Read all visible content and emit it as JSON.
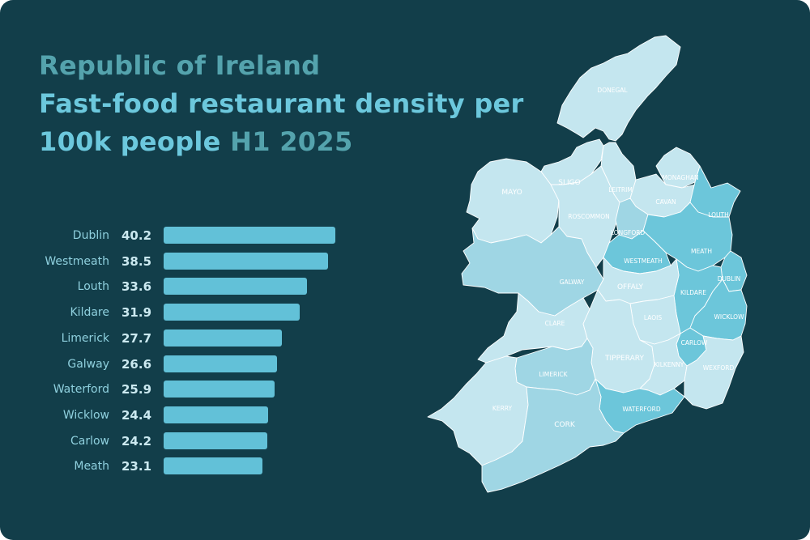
{
  "title": {
    "line1": "Republic of Ireland",
    "line2": "Fast-food restaurant density per",
    "line3_a": "100k people",
    "line3_b": "H1 2025"
  },
  "chart_data": {
    "type": "bar",
    "orientation": "horizontal",
    "categories": [
      "Dublin",
      "Westmeath",
      "Louth",
      "Kildare",
      "Limerick",
      "Galway",
      "Waterford",
      "Wicklow",
      "Carlow",
      "Meath"
    ],
    "values": [
      40.2,
      38.5,
      33.6,
      31.9,
      27.7,
      26.6,
      25.9,
      24.4,
      24.2,
      23.1
    ],
    "value_labels": [
      "40.2",
      "38.5",
      "33.6",
      "31.9",
      "27.7",
      "26.6",
      "25.9",
      "24.4",
      "24.2",
      "23.1"
    ],
    "title": "Republic of Ireland Fast-food restaurant density per 100k people H1 2025",
    "xlim": [
      0,
      40.2
    ]
  },
  "map": {
    "counties": [
      {
        "name": "DONEGAL"
      },
      {
        "name": "SLIGO"
      },
      {
        "name": "LEITRIM"
      },
      {
        "name": "MONAGHAN"
      },
      {
        "name": "MAYO"
      },
      {
        "name": "CAVAN"
      },
      {
        "name": "ROSCOMMON"
      },
      {
        "name": "LOUTH"
      },
      {
        "name": "LONGFORD"
      },
      {
        "name": "MEATH"
      },
      {
        "name": "WESTMEATH"
      },
      {
        "name": "GALWAY"
      },
      {
        "name": "OFFALY"
      },
      {
        "name": "DUBLIN"
      },
      {
        "name": "KILDARE"
      },
      {
        "name": "CLARE"
      },
      {
        "name": "LAOIS"
      },
      {
        "name": "WICKLOW"
      },
      {
        "name": "CARLOW"
      },
      {
        "name": "TIPPERARY"
      },
      {
        "name": "KILKENNY"
      },
      {
        "name": "WEXFORD"
      },
      {
        "name": "LIMERICK"
      },
      {
        "name": "KERRY"
      },
      {
        "name": "WATERFORD"
      },
      {
        "name": "CORK"
      }
    ]
  },
  "colors": {
    "background": "#123e4a",
    "bar": "#62c1d8",
    "map_light": "#c4e6ef",
    "map_mid": "#9fd6e4",
    "map_dark": "#6cc6da",
    "map_border": "#ffffff"
  }
}
